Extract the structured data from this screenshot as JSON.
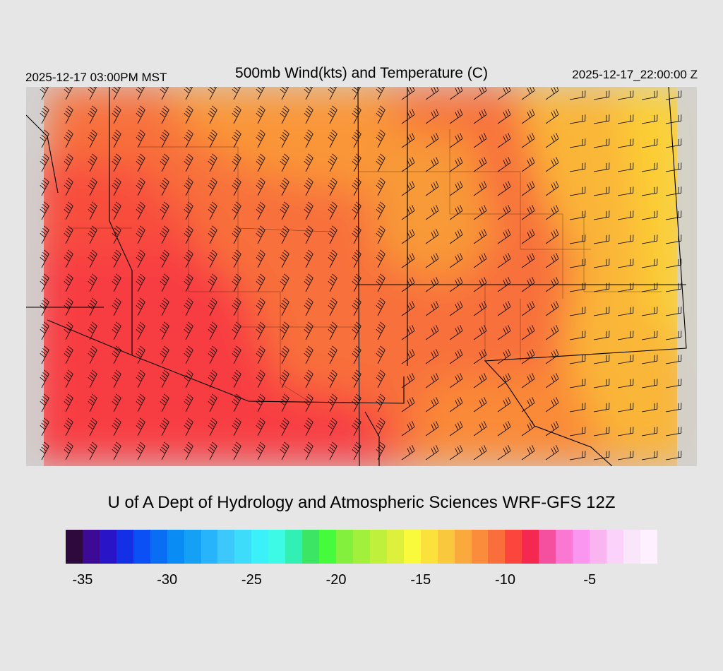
{
  "header": {
    "local_time": "2025-12-17 03:00PM MST",
    "title": "500mb Wind(kts) and Temperature (C)",
    "valid_time": "2025-12-17_22:00:00 Z"
  },
  "credit": "U of A Dept of Hydrology and Atmospheric Sciences WRF-GFS 12Z",
  "colorbar": {
    "colors": [
      "#2e0a3c",
      "#3d0a96",
      "#2a14c8",
      "#1430e6",
      "#0a50f5",
      "#0a6ef5",
      "#0a8cf5",
      "#14a0f5",
      "#28b4fa",
      "#3cc8fa",
      "#3cdcfa",
      "#3cf0fa",
      "#3cfae6",
      "#32f0b4",
      "#3ce664",
      "#46fa3c",
      "#82f03c",
      "#a0f03c",
      "#bef03c",
      "#dcf03c",
      "#fafa3c",
      "#fae13c",
      "#fac83c",
      "#faaa3c",
      "#fa8c3c",
      "#fa6e3c",
      "#fa463c",
      "#f52850",
      "#f550a0",
      "#fa78d2",
      "#fa96f0",
      "#fab4f0",
      "#fad2fa",
      "#fae6fa",
      "#fff0ff"
    ],
    "tick_labels": [
      "-35",
      "-30",
      "-25",
      "-20",
      "-15",
      "-10",
      "-5"
    ],
    "tick_values": [
      -35,
      -30,
      -25,
      -20,
      -15,
      -10,
      -5
    ],
    "range": [
      -36,
      -1
    ]
  },
  "map_layers": {
    "temperature_colors": {
      "cold": "#f83c42",
      "mid": "#f8703a",
      "warm": "#fa9638",
      "warmer": "#fcc437"
    },
    "no_data_color": "#d2d2d2",
    "wind_barb_color": "#000000",
    "border_color": "#000000"
  }
}
